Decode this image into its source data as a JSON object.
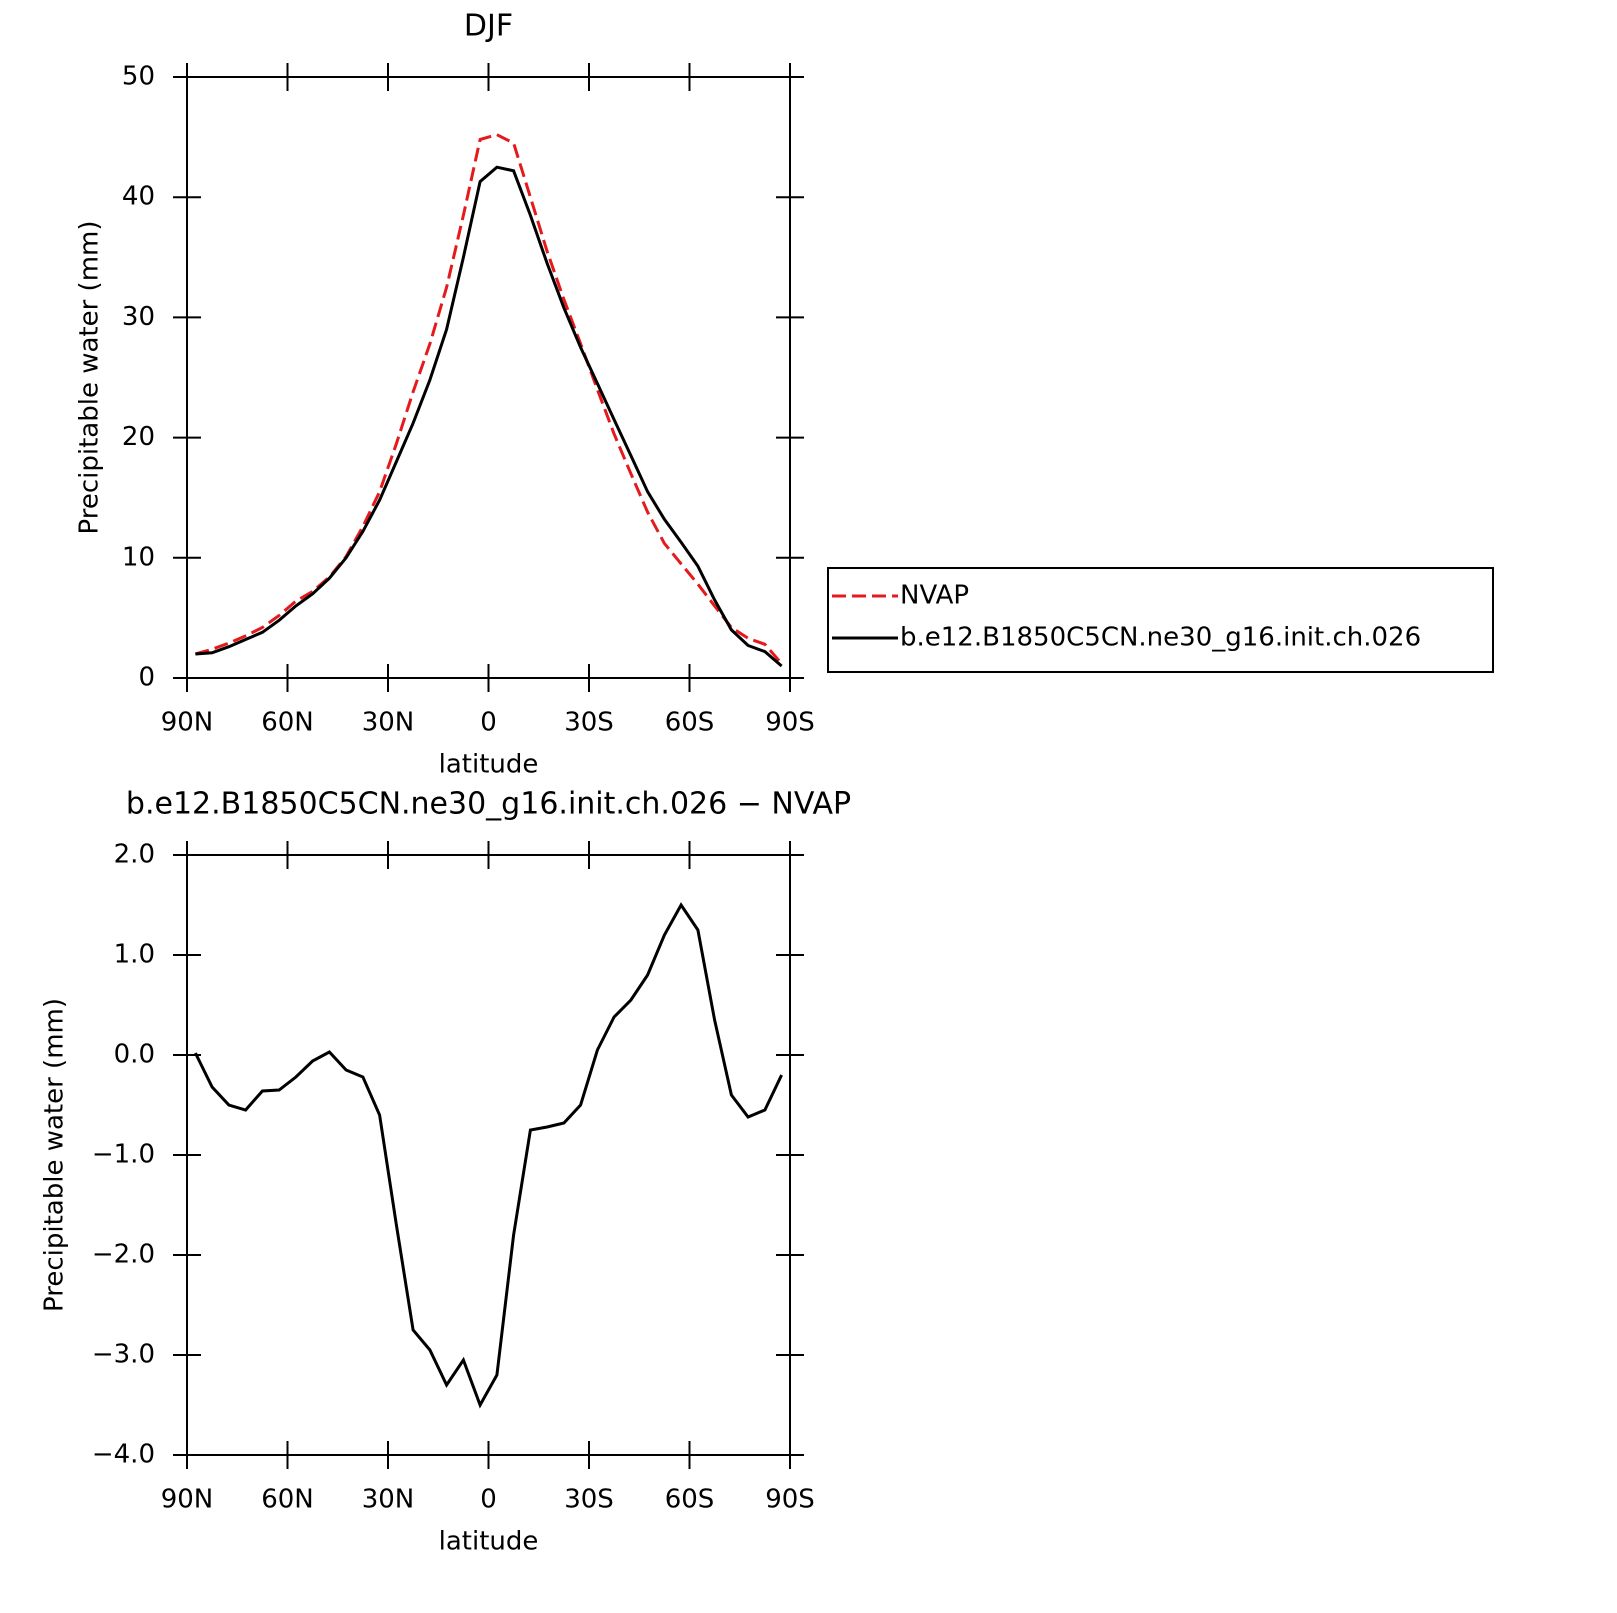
{
  "chart_data": [
    {
      "type": "line",
      "title": "DJF",
      "xlabel": "latitude",
      "ylabel": "Precipitable water (mm)",
      "x": [
        87.5,
        82.5,
        77.5,
        72.5,
        67.5,
        62.5,
        57.5,
        52.5,
        47.5,
        42.5,
        37.5,
        32.5,
        27.5,
        22.5,
        17.5,
        12.5,
        7.5,
        2.5,
        -2.5,
        -7.5,
        -12.5,
        -17.5,
        -22.5,
        -27.5,
        -32.5,
        -37.5,
        -42.5,
        -47.5,
        -52.5,
        -57.5,
        -62.5,
        -67.5,
        -72.5,
        -77.5,
        -82.5,
        -87.5
      ],
      "series": [
        {
          "name": "NVAP",
          "color": "#e41a1c",
          "dash": "dashed",
          "values": [
            2.0,
            2.4,
            2.9,
            3.5,
            4.2,
            5.2,
            6.4,
            7.2,
            8.4,
            10.1,
            12.6,
            15.5,
            19.5,
            23.8,
            27.8,
            32.5,
            38.5,
            44.8,
            45.2,
            44.5,
            40.0,
            35.5,
            31.5,
            27.8,
            24.0,
            20.3,
            17.0,
            13.8,
            11.2,
            9.5,
            7.8,
            6.0,
            4.2,
            3.3,
            2.8,
            1.2
          ]
        },
        {
          "name": "b.e12.B1850C5CN.ne30_g16.init.ch.026",
          "color": "#000000",
          "dash": "solid",
          "values": [
            2.0,
            2.1,
            2.6,
            3.2,
            3.8,
            4.8,
            6.0,
            7.0,
            8.3,
            10.0,
            12.2,
            14.8,
            18.0,
            21.2,
            24.8,
            29.0,
            35.0,
            41.3,
            42.5,
            42.2,
            38.5,
            34.5,
            30.8,
            27.5,
            24.5,
            21.5,
            18.5,
            15.5,
            13.2,
            11.3,
            9.3,
            6.5,
            4.0,
            2.7,
            2.2,
            1.0
          ]
        }
      ],
      "xlim": [
        90,
        -90
      ],
      "xticks": [
        {
          "value": 90,
          "label": "90N"
        },
        {
          "value": 60,
          "label": "60N"
        },
        {
          "value": 30,
          "label": "30N"
        },
        0,
        {
          "value": -30,
          "label": "30S"
        },
        {
          "value": -60,
          "label": "60S"
        },
        {
          "value": -90,
          "label": "90S"
        }
      ],
      "ylim": [
        0,
        50
      ],
      "yticks": [
        0,
        10,
        20,
        30,
        40,
        50
      ],
      "legend": "right"
    },
    {
      "type": "line",
      "title": "b.e12.B1850C5CN.ne30_g16.init.ch.026 − NVAP",
      "xlabel": "latitude",
      "ylabel": "Precipitable water (mm)",
      "x": [
        87.5,
        82.5,
        77.5,
        72.5,
        67.5,
        62.5,
        57.5,
        52.5,
        47.5,
        42.5,
        37.5,
        32.5,
        27.5,
        22.5,
        17.5,
        12.5,
        7.5,
        2.5,
        -2.5,
        -7.5,
        -12.5,
        -17.5,
        -22.5,
        -27.5,
        -32.5,
        -37.5,
        -42.5,
        -47.5,
        -52.5,
        -57.5,
        -62.5,
        -67.5,
        -72.5,
        -77.5,
        -82.5,
        -87.5
      ],
      "color": "#000000",
      "values": [
        0.02,
        -0.32,
        -0.5,
        -0.55,
        -0.36,
        -0.35,
        -0.22,
        -0.06,
        0.03,
        -0.15,
        -0.22,
        -0.6,
        -1.7,
        -2.75,
        -2.95,
        -3.3,
        -3.05,
        -3.5,
        -3.2,
        -1.8,
        -0.75,
        -0.72,
        -0.68,
        -0.5,
        0.05,
        0.38,
        0.55,
        0.8,
        1.2,
        1.5,
        1.25,
        0.35,
        -0.4,
        -0.62,
        -0.55,
        -0.2
      ],
      "xlim": [
        90,
        -90
      ],
      "xticks": [
        {
          "value": 90,
          "label": "90N"
        },
        {
          "value": 60,
          "label": "60N"
        },
        {
          "value": 30,
          "label": "30N"
        },
        0,
        {
          "value": -30,
          "label": "30S"
        },
        {
          "value": -60,
          "label": "60S"
        },
        {
          "value": -90,
          "label": "90S"
        }
      ],
      "ylim": [
        -4,
        2
      ],
      "yticks": [
        {
          "value": -4,
          "label": "−4.0"
        },
        {
          "value": -3,
          "label": "−3.0"
        },
        {
          "value": -2,
          "label": "−2.0"
        },
        {
          "value": -1,
          "label": "−1.0"
        },
        {
          "value": 0,
          "label": "0.0"
        },
        {
          "value": 1,
          "label": "1.0"
        },
        {
          "value": 2,
          "label": "2.0"
        }
      ]
    }
  ]
}
